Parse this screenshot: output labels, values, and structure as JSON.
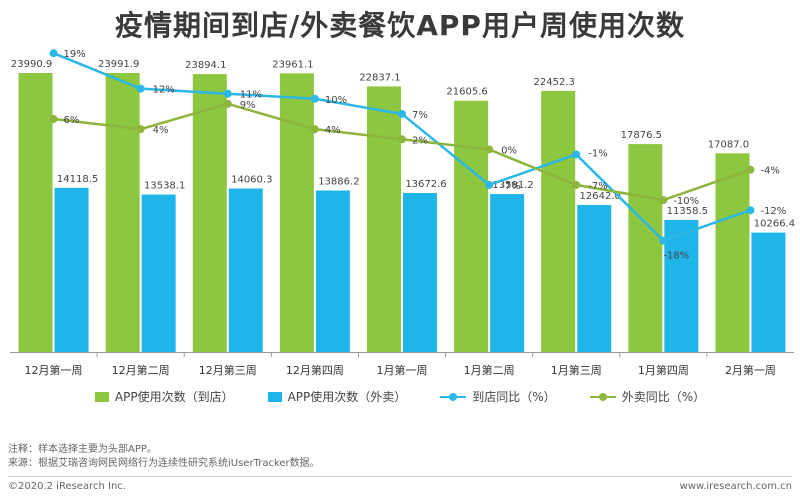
{
  "title": "疫情期间到店/外卖餐饮APP用户周使用次数",
  "chart_data": {
    "type": "bar",
    "categories": [
      "12月第一周",
      "12月第二周",
      "12月第三周",
      "12月第四周",
      "1月第一周",
      "1月第二周",
      "1月第三周",
      "1月第四周",
      "2月第一周"
    ],
    "series": [
      {
        "name": "APP使用次数（到店）",
        "kind": "bar",
        "axis": "left",
        "values": [
          23990.9,
          23991.9,
          23894.1,
          23961.1,
          22837.1,
          21605.6,
          22452.3,
          17876.5,
          17087.0
        ],
        "labels": [
          "23990.9",
          "23991.9",
          "23894.1",
          "23961.1",
          "22837.1",
          "21605.6",
          "22452.3",
          "17876.5",
          "17087.0"
        ]
      },
      {
        "name": "APP使用次数（外卖）",
        "kind": "bar",
        "axis": "left",
        "values": [
          14118.5,
          13538.1,
          14060.3,
          13886.2,
          13672.6,
          13581.2,
          12642.0,
          11358.5,
          10266.4
        ],
        "labels": [
          "14118.5",
          "13538.1",
          "14060.3",
          "13886.2",
          "13672.6",
          "13581.2",
          "12642.0",
          "11358.5",
          "10266.4"
        ]
      },
      {
        "name": "到店同比（%）",
        "kind": "line",
        "axis": "right",
        "values": [
          19,
          12,
          11,
          10,
          7,
          -7,
          -1,
          -18,
          -12
        ],
        "labels": [
          "19%",
          "12%",
          "11%",
          "10%",
          "7%",
          "-7%",
          "-1%",
          "-18%",
          "-12%"
        ]
      },
      {
        "name": "外卖同比（%）",
        "kind": "line",
        "axis": "right",
        "values": [
          6,
          4,
          9,
          4,
          2,
          0,
          -7,
          -10,
          -4
        ],
        "labels": [
          "6%",
          "4%",
          "9%",
          "4%",
          "2%",
          "0%",
          "-7%",
          "-10%",
          "-4%"
        ]
      }
    ],
    "ylim_left": [
      0,
      27000
    ],
    "ylim_right": [
      -40,
      22
    ],
    "grid": false,
    "legend_position": "bottom",
    "colors": {
      "bar_store": "#8DC63F",
      "bar_takeout": "#1FB5E8",
      "line_store": "#2BB8E6",
      "line_takeout": "#8DB43C",
      "axis": "#999999"
    }
  },
  "notes": {
    "line1": "注释：样本选择主要为头部APP。",
    "line2": "来源：根据艾瑞咨询网民网络行为连续性研究系统iUserTracker数据。"
  },
  "footer": {
    "copyright": "©2020.2 iResearch Inc.",
    "site": "www.iresearch.com.cn"
  }
}
